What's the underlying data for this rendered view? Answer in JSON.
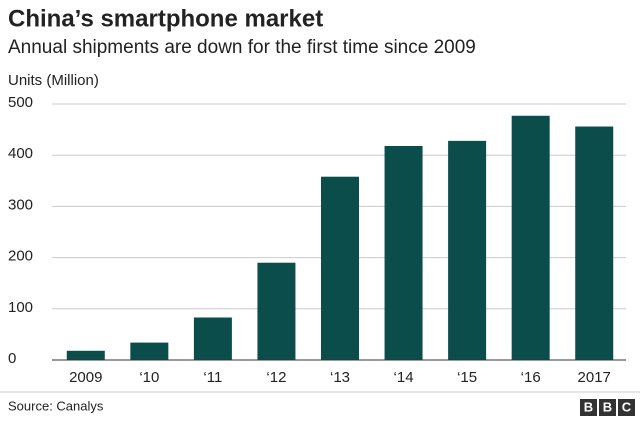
{
  "chart_data": {
    "type": "bar",
    "title": "China’s smartphone market",
    "subtitle": "Annual shipments are down for the first time since 2009",
    "y_label": "Units (Million)",
    "categories": [
      "2009",
      "‘10",
      "‘11",
      "‘12",
      "‘13",
      "‘14",
      "‘15",
      "‘16",
      "2017"
    ],
    "values": [
      18,
      34,
      83,
      190,
      358,
      418,
      428,
      477,
      456
    ],
    "color": "#0b4d4a",
    "ylim": [
      0,
      500
    ],
    "yticks": [
      0,
      100,
      200,
      300,
      400,
      500
    ],
    "grid": true,
    "source": "Source: Canalys",
    "logo": [
      "B",
      "B",
      "C"
    ]
  }
}
